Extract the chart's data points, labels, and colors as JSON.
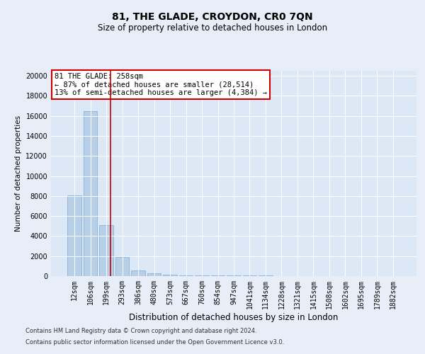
{
  "title": "81, THE GLADE, CROYDON, CR0 7QN",
  "subtitle": "Size of property relative to detached houses in London",
  "xlabel": "Distribution of detached houses by size in London",
  "ylabel": "Number of detached properties",
  "bar_color": "#b8cfe8",
  "bar_edge_color": "#7aaad0",
  "categories": [
    "12sqm",
    "106sqm",
    "199sqm",
    "293sqm",
    "386sqm",
    "480sqm",
    "573sqm",
    "667sqm",
    "760sqm",
    "854sqm",
    "947sqm",
    "1041sqm",
    "1134sqm",
    "1228sqm",
    "1321sqm",
    "1415sqm",
    "1508sqm",
    "1602sqm",
    "1695sqm",
    "1789sqm",
    "1882sqm"
  ],
  "values": [
    8050,
    16500,
    5100,
    1900,
    580,
    290,
    160,
    100,
    80,
    75,
    70,
    65,
    60,
    0,
    0,
    0,
    0,
    0,
    0,
    0,
    0
  ],
  "ylim": [
    0,
    20500
  ],
  "yticks": [
    0,
    2000,
    4000,
    6000,
    8000,
    10000,
    12000,
    14000,
    16000,
    18000,
    20000
  ],
  "vline_x": 2.25,
  "vline_color": "#cc0000",
  "annotation_text": "81 THE GLADE: 258sqm\n← 87% of detached houses are smaller (28,514)\n13% of semi-detached houses are larger (4,384) →",
  "annotation_box_color": "#cc0000",
  "annotation_bg": "#ffffff",
  "footnote1": "Contains HM Land Registry data © Crown copyright and database right 2024.",
  "footnote2": "Contains public sector information licensed under the Open Government Licence v3.0.",
  "bg_color": "#e8eef8",
  "plot_bg_color": "#dce8f5",
  "title_fontsize": 10,
  "subtitle_fontsize": 8.5,
  "xlabel_fontsize": 8.5,
  "ylabel_fontsize": 7.5,
  "tick_fontsize": 7,
  "annot_fontsize": 7.5,
  "footnote_fontsize": 6
}
